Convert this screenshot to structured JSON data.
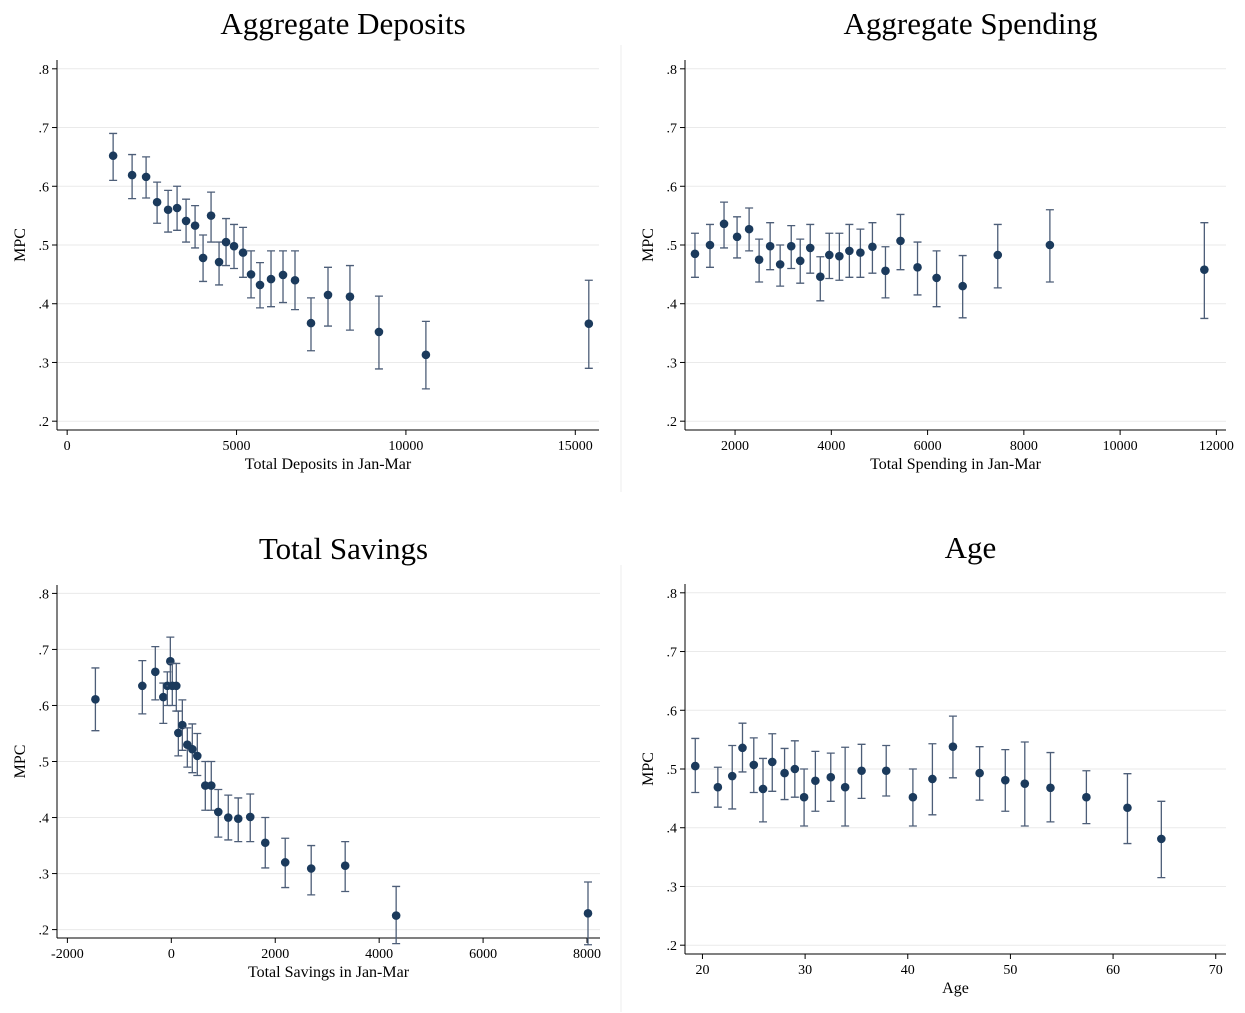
{
  "chart_data": [
    {
      "type": "scatter",
      "title": "Aggregate Deposits",
      "x_label": "Total Deposits in Jan-Mar",
      "y_label": "MPC",
      "xlim": [
        -300,
        15700
      ],
      "xticks": [
        0,
        5000,
        10000,
        15000
      ],
      "ylim": [
        0.185,
        0.815
      ],
      "yticks": [
        {
          "value": 0.2,
          "label": ".2"
        },
        {
          "value": 0.3,
          "label": ".3"
        },
        {
          "value": 0.4,
          "label": ".4"
        },
        {
          "value": 0.5,
          "label": ".5"
        },
        {
          "value": 0.6,
          "label": ".6"
        },
        {
          "value": 0.7,
          "label": ".7"
        },
        {
          "value": 0.8,
          "label": ".8"
        }
      ],
      "grid": true,
      "color": "#1b3a5c",
      "x": [
        1357,
        1917,
        2330,
        2655,
        2980,
        3245,
        3510,
        3776,
        4012,
        4248,
        4484,
        4690,
        4926,
        5192,
        5428,
        5693,
        6018,
        6372,
        6726,
        7198,
        7700,
        8348,
        9204,
        10590,
        15399
      ],
      "values": [
        0.652,
        0.619,
        0.616,
        0.573,
        0.56,
        0.563,
        0.541,
        0.533,
        0.478,
        0.55,
        0.471,
        0.505,
        0.498,
        0.487,
        0.45,
        0.432,
        0.442,
        0.449,
        0.44,
        0.367,
        0.415,
        0.412,
        0.352,
        0.313,
        0.366
      ],
      "lower": [
        0.61,
        0.579,
        0.58,
        0.537,
        0.522,
        0.525,
        0.505,
        0.495,
        0.438,
        0.505,
        0.432,
        0.465,
        0.46,
        0.445,
        0.41,
        0.393,
        0.395,
        0.402,
        0.39,
        0.32,
        0.362,
        0.355,
        0.289,
        0.255,
        0.29
      ],
      "upper": [
        0.69,
        0.654,
        0.65,
        0.607,
        0.593,
        0.6,
        0.578,
        0.567,
        0.517,
        0.59,
        0.505,
        0.545,
        0.535,
        0.53,
        0.49,
        0.47,
        0.49,
        0.49,
        0.49,
        0.41,
        0.462,
        0.465,
        0.413,
        0.37,
        0.44
      ]
    },
    {
      "type": "scatter",
      "title": "Aggregate Spending",
      "x_label": "Total Spending in Jan-Mar",
      "y_label": "MPC",
      "xlim": [
        960,
        12200
      ],
      "xticks": [
        2000,
        4000,
        6000,
        8000,
        10000,
        12000
      ],
      "ylim": [
        0.185,
        0.815
      ],
      "yticks": [
        {
          "value": 0.2,
          "label": ".2"
        },
        {
          "value": 0.3,
          "label": ".3"
        },
        {
          "value": 0.4,
          "label": ".4"
        },
        {
          "value": 0.5,
          "label": ".5"
        },
        {
          "value": 0.6,
          "label": ".6"
        },
        {
          "value": 0.7,
          "label": ".7"
        },
        {
          "value": 0.8,
          "label": ".8"
        }
      ],
      "grid": true,
      "color": "#1b3a5c",
      "x": [
        1167,
        1479,
        1771,
        2042,
        2292,
        2500,
        2729,
        2937,
        3167,
        3354,
        3562,
        3771,
        3958,
        4167,
        4375,
        4604,
        4854,
        5125,
        5437,
        5791,
        6187,
        6729,
        7458,
        8541,
        11750
      ],
      "values": [
        0.485,
        0.5,
        0.536,
        0.514,
        0.527,
        0.475,
        0.498,
        0.467,
        0.498,
        0.473,
        0.495,
        0.446,
        0.483,
        0.481,
        0.49,
        0.487,
        0.497,
        0.456,
        0.507,
        0.462,
        0.444,
        0.43,
        0.483,
        0.5,
        0.458
      ],
      "lower": [
        0.445,
        0.462,
        0.495,
        0.478,
        0.49,
        0.437,
        0.458,
        0.43,
        0.46,
        0.435,
        0.452,
        0.405,
        0.443,
        0.44,
        0.445,
        0.445,
        0.452,
        0.41,
        0.458,
        0.415,
        0.395,
        0.376,
        0.427,
        0.437,
        0.375
      ],
      "upper": [
        0.52,
        0.535,
        0.573,
        0.548,
        0.563,
        0.51,
        0.538,
        0.5,
        0.533,
        0.51,
        0.535,
        0.48,
        0.52,
        0.52,
        0.535,
        0.527,
        0.538,
        0.497,
        0.552,
        0.505,
        0.49,
        0.482,
        0.535,
        0.56,
        0.538
      ]
    },
    {
      "type": "scatter",
      "title": "Total Savings",
      "x_label": "Total Savings in Jan-Mar",
      "y_label": "MPC",
      "xlim": [
        -2200,
        8250
      ],
      "xticks": [
        -2000,
        0,
        2000,
        4000,
        6000,
        8000
      ],
      "ylim": [
        0.185,
        0.815
      ],
      "yticks": [
        {
          "value": 0.2,
          "label": ".2"
        },
        {
          "value": 0.3,
          "label": ".3"
        },
        {
          "value": 0.4,
          "label": ".4"
        },
        {
          "value": 0.5,
          "label": ".5"
        },
        {
          "value": 0.6,
          "label": ".6"
        },
        {
          "value": 0.7,
          "label": ".7"
        },
        {
          "value": 0.8,
          "label": ".8"
        }
      ],
      "grid": true,
      "color": "#1b3a5c",
      "x": [
        -1461,
        -558,
        -308,
        -154,
        -77,
        -19,
        19,
        96,
        135,
        212,
        308,
        404,
        500,
        654,
        769,
        904,
        1096,
        1288,
        1519,
        1808,
        2192,
        2692,
        3346,
        4327,
        8019
      ],
      "values": [
        0.611,
        0.635,
        0.66,
        0.615,
        0.635,
        0.679,
        0.635,
        0.635,
        0.551,
        0.565,
        0.53,
        0.522,
        0.51,
        0.457,
        0.457,
        0.41,
        0.4,
        0.398,
        0.401,
        0.355,
        0.32,
        0.309,
        0.314,
        0.225,
        0.229
      ],
      "lower": [
        0.555,
        0.585,
        0.61,
        0.568,
        0.6,
        0.635,
        0.6,
        0.59,
        0.51,
        0.52,
        0.49,
        0.48,
        0.475,
        0.413,
        0.413,
        0.365,
        0.36,
        0.357,
        0.357,
        0.31,
        0.275,
        0.262,
        0.268,
        0.175,
        0.173
      ],
      "upper": [
        0.667,
        0.68,
        0.705,
        0.64,
        0.66,
        0.722,
        0.675,
        0.675,
        0.59,
        0.61,
        0.56,
        0.567,
        0.55,
        0.5,
        0.5,
        0.45,
        0.44,
        0.435,
        0.442,
        0.4,
        0.363,
        0.35,
        0.357,
        0.277,
        0.285
      ]
    },
    {
      "type": "scatter",
      "title": "Age",
      "x_label": "Age",
      "y_label": "MPC",
      "xlim": [
        18.3,
        71
      ],
      "xticks": [
        20,
        30,
        40,
        50,
        60,
        70
      ],
      "ylim": [
        0.185,
        0.815
      ],
      "yticks": [
        {
          "value": 0.2,
          "label": ".2"
        },
        {
          "value": 0.3,
          "label": ".3"
        },
        {
          "value": 0.4,
          "label": ".4"
        },
        {
          "value": 0.5,
          "label": ".5"
        },
        {
          "value": 0.6,
          "label": ".6"
        },
        {
          "value": 0.7,
          "label": ".7"
        },
        {
          "value": 0.8,
          "label": ".8"
        }
      ],
      "grid": true,
      "color": "#1b3a5c",
      "x": [
        19.3,
        21.5,
        22.9,
        23.9,
        25,
        25.9,
        26.8,
        28,
        29,
        29.9,
        31,
        32.5,
        33.9,
        35.5,
        37.9,
        40.5,
        42.4,
        44.4,
        47,
        49.5,
        51.4,
        53.9,
        57.4,
        61.4,
        64.7
      ],
      "values": [
        0.505,
        0.469,
        0.488,
        0.536,
        0.507,
        0.466,
        0.512,
        0.493,
        0.5,
        0.452,
        0.48,
        0.486,
        0.469,
        0.497,
        0.497,
        0.452,
        0.483,
        0.538,
        0.493,
        0.481,
        0.475,
        0.468,
        0.452,
        0.434,
        0.381
      ],
      "lower": [
        0.46,
        0.435,
        0.432,
        0.495,
        0.46,
        0.41,
        0.462,
        0.448,
        0.452,
        0.403,
        0.428,
        0.445,
        0.403,
        0.45,
        0.454,
        0.403,
        0.422,
        0.485,
        0.447,
        0.428,
        0.403,
        0.41,
        0.407,
        0.373,
        0.315
      ],
      "upper": [
        0.552,
        0.503,
        0.54,
        0.578,
        0.553,
        0.518,
        0.56,
        0.535,
        0.548,
        0.5,
        0.53,
        0.527,
        0.537,
        0.542,
        0.54,
        0.5,
        0.543,
        0.59,
        0.538,
        0.533,
        0.546,
        0.528,
        0.497,
        0.492,
        0.445
      ]
    }
  ]
}
